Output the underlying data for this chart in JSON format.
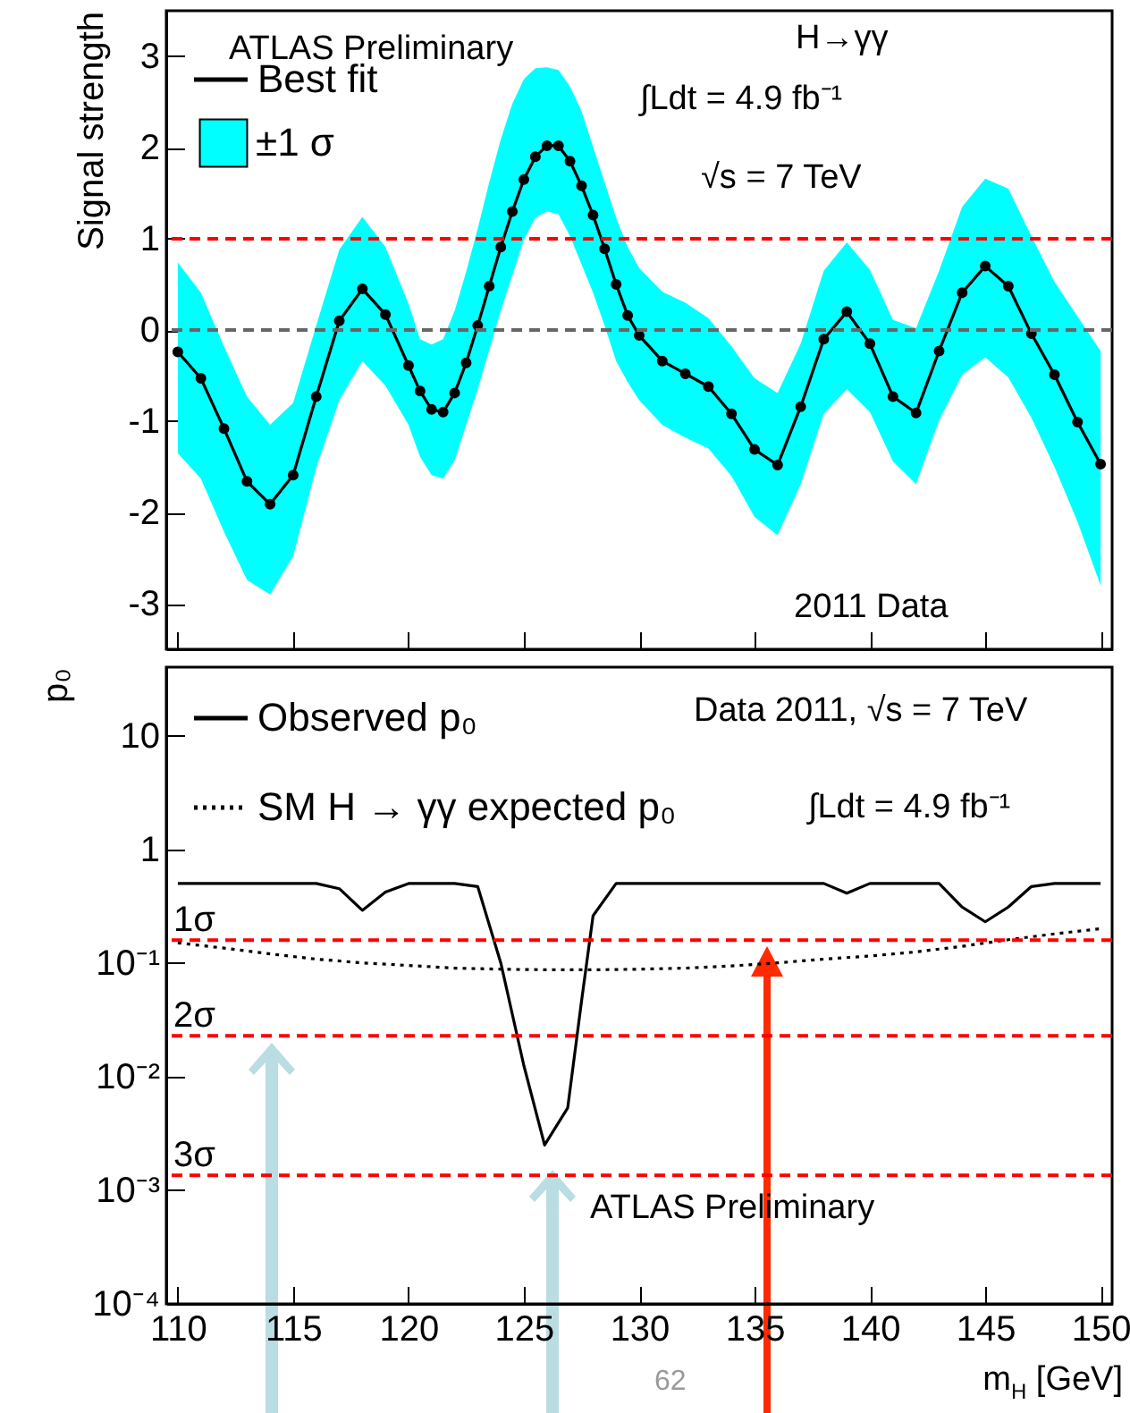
{
  "chart_data": [
    {
      "type": "line",
      "ylabel": "Signal strength",
      "annotations": [
        "ATLAS Preliminary",
        "±1 σ",
        "H→γγ",
        "∫Ldt = 4.9 fb⁻¹",
        "√s = 7 TeV",
        "2011 Data"
      ],
      "x": [
        110,
        111,
        112,
        113,
        114,
        115,
        116,
        117,
        118,
        119,
        120,
        120.5,
        121,
        121.5,
        122,
        122.5,
        123,
        123.5,
        124,
        124.5,
        125,
        125.5,
        126,
        126.5,
        127,
        127.5,
        128,
        128.5,
        129,
        129.5,
        130,
        131,
        132,
        133,
        134,
        135,
        136,
        137,
        138,
        139,
        140,
        141,
        142,
        143,
        144,
        145,
        146,
        147,
        148,
        149,
        150
      ],
      "series": [
        {
          "name": "Best fit",
          "color": "#000000",
          "values": [
            -0.24,
            -0.53,
            -1.08,
            -1.66,
            -1.91,
            -1.59,
            -0.73,
            0.1,
            0.45,
            0.17,
            -0.39,
            -0.67,
            -0.87,
            -0.9,
            -0.69,
            -0.36,
            0.05,
            0.48,
            0.91,
            1.3,
            1.65,
            1.9,
            2.02,
            2.02,
            1.85,
            1.58,
            1.26,
            0.89,
            0.5,
            0.16,
            -0.06,
            -0.34,
            -0.48,
            -0.62,
            -0.92,
            -1.31,
            -1.48,
            -0.84,
            -0.1,
            0.2,
            -0.15,
            -0.73,
            -0.91,
            -0.23,
            0.41,
            0.7,
            0.48,
            -0.04,
            -0.49,
            -1.01,
            -1.47
          ],
          "lower": [
            -1.35,
            -1.63,
            -2.21,
            -2.74,
            -2.9,
            -2.48,
            -1.51,
            -0.77,
            -0.34,
            -0.61,
            -1.04,
            -1.39,
            -1.59,
            -1.63,
            -1.43,
            -1.04,
            -0.65,
            -0.22,
            0.21,
            0.6,
            0.99,
            1.23,
            1.3,
            1.27,
            1.03,
            0.72,
            0.41,
            0.05,
            -0.34,
            -0.57,
            -0.77,
            -1.04,
            -1.18,
            -1.3,
            -1.6,
            -2.05,
            -2.25,
            -1.69,
            -0.92,
            -0.65,
            -0.9,
            -1.44,
            -1.69,
            -0.99,
            -0.49,
            -0.3,
            -0.52,
            -0.96,
            -1.5,
            -2.1,
            -2.8
          ],
          "upper": [
            0.74,
            0.41,
            -0.18,
            -0.73,
            -1.04,
            -0.8,
            0.05,
            0.88,
            1.24,
            0.91,
            0.29,
            -0.1,
            -0.16,
            -0.1,
            0.21,
            0.64,
            1.11,
            1.62,
            2.09,
            2.48,
            2.75,
            2.87,
            2.88,
            2.85,
            2.67,
            2.4,
            2.01,
            1.62,
            1.23,
            0.91,
            0.68,
            0.42,
            0.3,
            0.13,
            -0.18,
            -0.53,
            -0.69,
            -0.15,
            0.65,
            0.96,
            0.66,
            0.11,
            0.02,
            0.65,
            1.35,
            1.66,
            1.55,
            1.03,
            0.53,
            0.15,
            -0.23
          ]
        }
      ],
      "marker": "circle",
      "line_style": "solid",
      "xlim": [
        109.5,
        150.5
      ],
      "xticks": [
        {
          "value": 110,
          "label": null
        },
        {
          "value": 115,
          "label": null
        },
        {
          "value": 120,
          "label": null
        },
        {
          "value": 125,
          "label": null
        },
        {
          "value": 130,
          "label": null
        },
        {
          "value": 135,
          "label": null
        },
        {
          "value": 140,
          "label": null
        },
        {
          "value": 145,
          "label": null
        },
        {
          "value": 150,
          "label": null
        }
      ],
      "ylim": [
        -3.5,
        3.5
      ],
      "yticks": [
        -3,
        -2,
        -1,
        0,
        1,
        2,
        3
      ],
      "tick_labels": "y",
      "ref_lines": [
        {
          "axis": "y",
          "value": 1,
          "color": "#ff0000",
          "line_style": "dashed"
        },
        {
          "axis": "y",
          "value": 0,
          "color": "#666666",
          "line_style": "dashed"
        }
      ],
      "legend": "top left"
    },
    {
      "type": "line",
      "ylabel": "p₀",
      "xlabel": "m$_{H}$ [GeV]",
      "annotations": [
        "Data 2011, √s = 7 TeV",
        "∫Ldt = 4.9 fb⁻¹",
        "ATLAS Preliminary",
        "62"
      ],
      "series": [
        {
          "name": "Observed p₀",
          "color": "#000000",
          "line_style": "solid",
          "x": [
            110,
            116,
            117,
            118,
            119,
            120,
            122,
            123,
            124,
            125,
            125.9,
            126.9,
            127.5,
            128,
            129,
            138,
            139,
            140,
            143,
            144,
            145,
            146,
            147,
            148,
            150
          ],
          "values": [
            0.5,
            0.5,
            0.45,
            0.29,
            0.42,
            0.5,
            0.5,
            0.47,
            0.1,
            0.0125,
            0.0025,
            0.0053,
            0.046,
            0.26,
            0.5,
            0.5,
            0.41,
            0.5,
            0.5,
            0.31,
            0.23,
            0.31,
            0.47,
            0.5,
            0.5
          ]
        },
        {
          "name": "SM H → γγ expected p₀",
          "color": "#000000",
          "line_style": "dotted",
          "x": [
            110,
            112,
            114,
            116,
            118,
            120,
            122,
            124,
            126,
            128,
            130,
            132,
            134,
            136,
            138,
            140,
            142,
            144,
            146,
            148,
            150
          ],
          "values": [
            0.15,
            0.135,
            0.12,
            0.108,
            0.1,
            0.095,
            0.09,
            0.088,
            0.087,
            0.087,
            0.088,
            0.09,
            0.094,
            0.1,
            0.108,
            0.115,
            0.125,
            0.14,
            0.16,
            0.18,
            0.2
          ]
        }
      ],
      "log": "y",
      "xlim": [
        109.5,
        150.5
      ],
      "xticks": [
        110,
        115,
        120,
        125,
        130,
        135,
        140,
        145,
        150
      ],
      "ylim": [
        0.0001,
        40
      ],
      "yticks": [
        {
          "value": 0.0001,
          "label": "10⁻⁴"
        },
        {
          "value": 0.001,
          "label": "10⁻³"
        },
        {
          "value": 0.01,
          "label": "10⁻²"
        },
        {
          "value": 0.1,
          "label": "10⁻¹"
        },
        1,
        10
      ],
      "ref_lines": [
        {
          "axis": "y",
          "value": 0.1587,
          "label": "1σ",
          "color": "#ff0000",
          "line_style": "dashed"
        },
        {
          "axis": "y",
          "value": 0.0228,
          "label": "2σ",
          "color": "#ff0000",
          "line_style": "dashed"
        },
        {
          "axis": "y",
          "value": 0.00135,
          "label": "3σ",
          "color": "#ff0000",
          "line_style": "dashed"
        }
      ],
      "legend": "top left"
    }
  ]
}
